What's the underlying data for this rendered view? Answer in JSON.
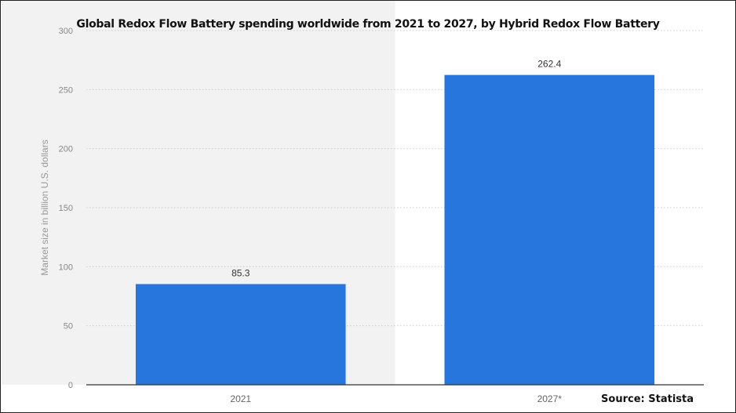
{
  "chart_data": {
    "type": "bar",
    "title": "Global Redox Flow Battery spending worldwide from 2021 to 2027, by Hybrid Redox Flow Battery",
    "xlabel": "",
    "ylabel": "Market size in billion U.S. dollars",
    "categories": [
      "2021",
      "2027*"
    ],
    "values": [
      85.3,
      262.4
    ],
    "value_labels": [
      "85.3",
      "262.4"
    ],
    "ylim": [
      0,
      300
    ],
    "yticks": [
      0,
      50,
      100,
      150,
      200,
      250,
      300
    ],
    "grid": "horizontal dotted",
    "colors": {
      "bar": "#2776dd",
      "grid": "#cccccc",
      "tick_text": "#888888",
      "band": "#f2f2f2"
    }
  },
  "source": "Source: Statista"
}
